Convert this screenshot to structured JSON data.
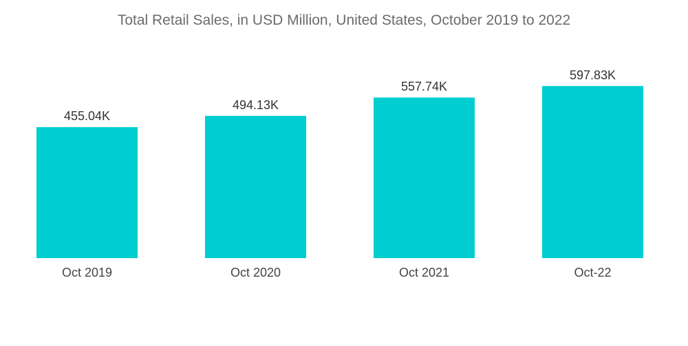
{
  "chart_data": {
    "type": "bar",
    "title": "Total Retail Sales, in USD Million, United States, October 2019 to 2022",
    "categories": [
      "Oct 2019",
      "Oct 2020",
      "Oct 2021",
      "Oct-22"
    ],
    "values": [
      455.04,
      494.13,
      557.74,
      597.83
    ],
    "value_labels": [
      "455.04K",
      "494.13K",
      "557.74K",
      "597.83K"
    ],
    "xlabel": "",
    "ylabel": "",
    "ylim": [
      0,
      620
    ],
    "grid": false,
    "legend": "none",
    "bar_color": "#00CED1"
  }
}
